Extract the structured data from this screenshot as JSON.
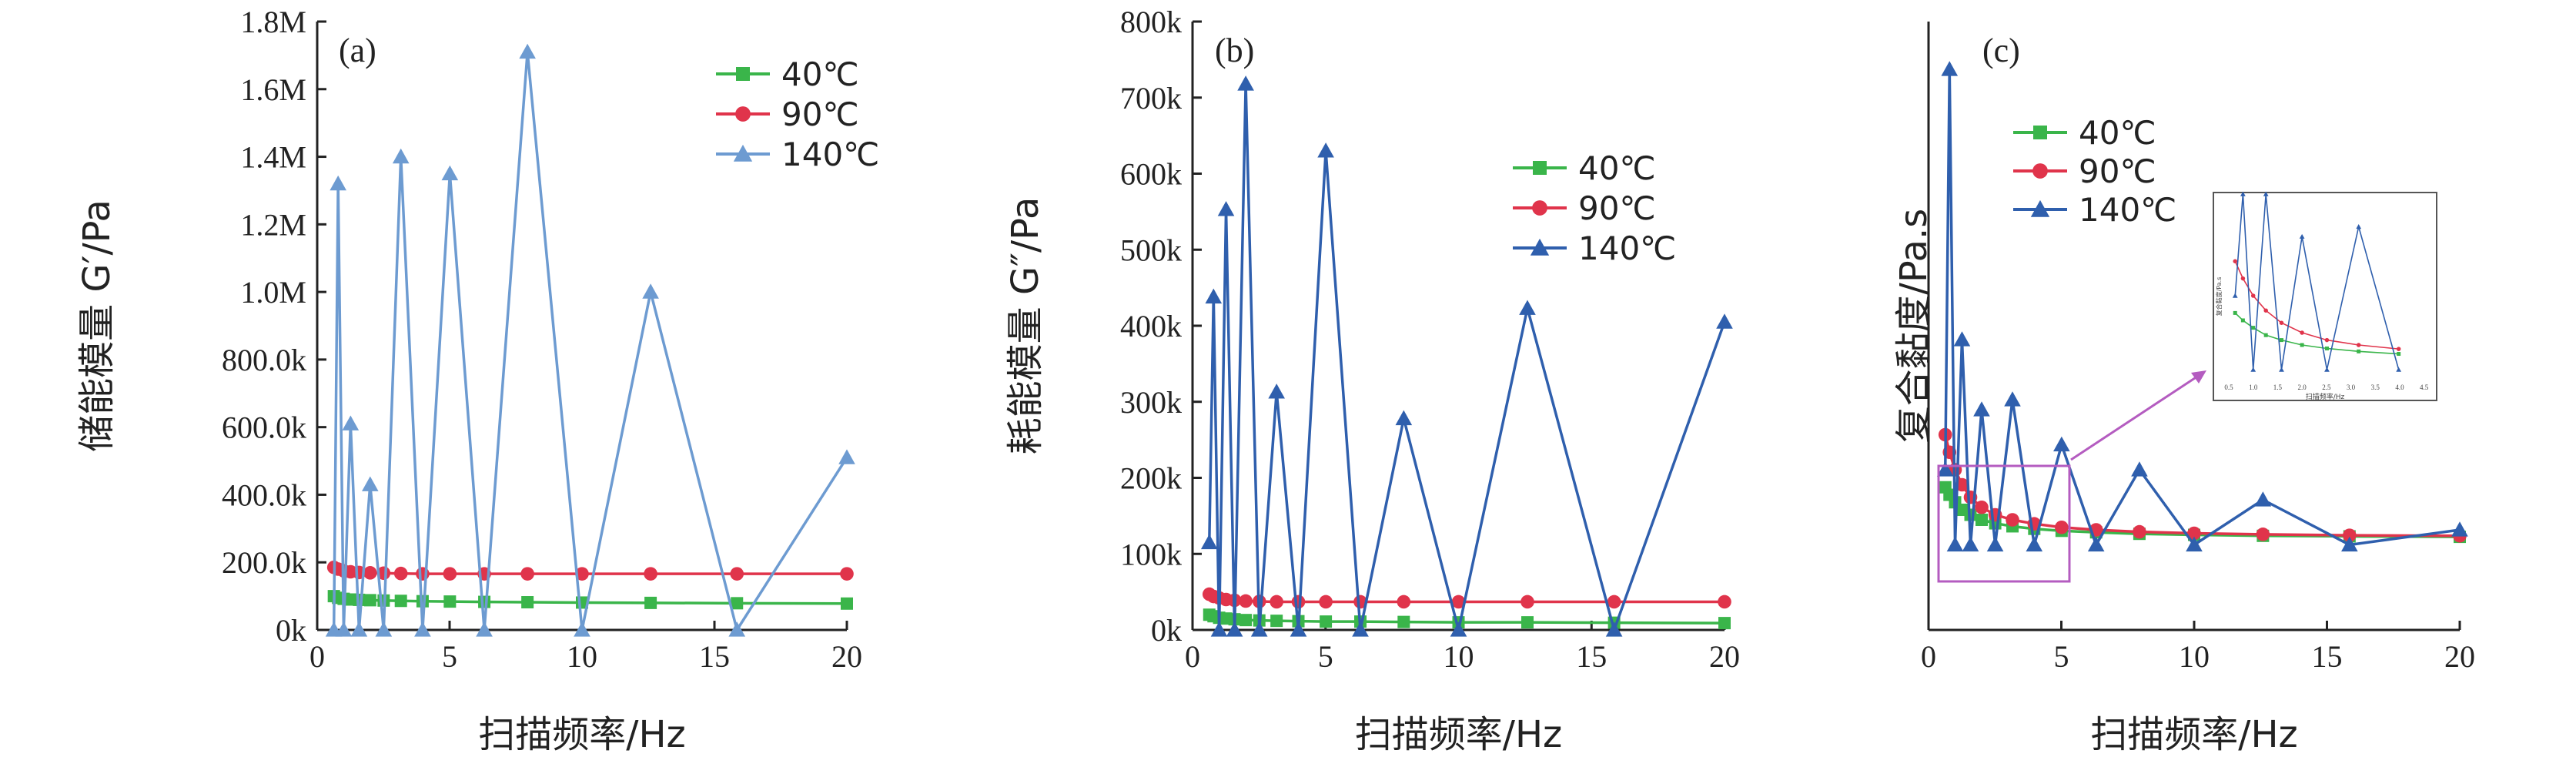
{
  "colors": {
    "c40": "#3ab54a",
    "c90": "#e0344b",
    "c140a": "#6d9bd1",
    "c140bc": "#2f5fad",
    "inset": "#b45cc0",
    "axis": "#222222"
  },
  "chart_data": [
    {
      "type": "line",
      "panel": "(a)",
      "xlabel": "扫描频率/Hz",
      "ylabel": "储能模量 G′/Pa",
      "xlim": [
        0,
        20
      ],
      "ylim": [
        0,
        1800000
      ],
      "xticks": [
        "0",
        "5",
        "10",
        "15",
        "20"
      ],
      "xtick_values": [
        0,
        5,
        10,
        15,
        20
      ],
      "yticks": [
        "0k",
        "200.0k",
        "400.0k",
        "600.0k",
        "800.0k",
        "1.0M",
        "1.2M",
        "1.4M",
        "1.6M",
        "1.8M"
      ],
      "ytick_values": [
        0,
        200000,
        400000,
        600000,
        800000,
        1000000,
        1200000,
        1400000,
        1600000,
        1800000
      ],
      "legend_position": "top-right",
      "series": [
        {
          "name": "40℃",
          "color_key": "c40",
          "marker": "square",
          "x": [
            0.63,
            0.79,
            1.0,
            1.26,
            1.58,
            2.0,
            2.51,
            3.16,
            3.98,
            5.01,
            6.31,
            7.94,
            10.0,
            12.59,
            15.85,
            20.0
          ],
          "y": [
            100000,
            95000,
            92000,
            90000,
            89000,
            88000,
            87000,
            86000,
            85000,
            84000,
            83000,
            82000,
            81000,
            80000,
            79000,
            78000
          ]
        },
        {
          "name": "90℃",
          "color_key": "c90",
          "marker": "circle",
          "x": [
            0.63,
            0.79,
            1.0,
            1.26,
            1.58,
            2.0,
            2.51,
            3.16,
            3.98,
            5.01,
            6.31,
            7.94,
            10.0,
            12.59,
            15.85,
            20.0
          ],
          "y": [
            185000,
            180000,
            175000,
            172000,
            170000,
            169000,
            168000,
            167000,
            166000,
            166000,
            166000,
            166000,
            166000,
            166000,
            166000,
            166000
          ]
        },
        {
          "name": "140℃",
          "color_key": "c140a",
          "marker": "triangle",
          "x": [
            0.63,
            0.79,
            1.0,
            1.26,
            1.58,
            2.0,
            2.51,
            3.16,
            3.98,
            5.01,
            6.31,
            7.94,
            10.0,
            12.59,
            15.85,
            20.0
          ],
          "y": [
            0,
            1320000,
            0,
            610000,
            0,
            430000,
            0,
            1400000,
            0,
            1350000,
            0,
            1710000,
            0,
            1000000,
            0,
            510000
          ]
        }
      ]
    },
    {
      "type": "line",
      "panel": "(b)",
      "xlabel": "扫描频率/Hz",
      "ylabel": "耗能模量 G″/Pa",
      "xlim": [
        0,
        20
      ],
      "ylim": [
        0,
        800000
      ],
      "xticks": [
        "0",
        "5",
        "10",
        "15",
        "20"
      ],
      "xtick_values": [
        0,
        5,
        10,
        15,
        20
      ],
      "yticks": [
        "0k",
        "100k",
        "200k",
        "300k",
        "400k",
        "500k",
        "600k",
        "700k",
        "800k"
      ],
      "ytick_values": [
        0,
        100000,
        200000,
        300000,
        400000,
        500000,
        600000,
        700000,
        800000
      ],
      "legend_position": "top-right",
      "series": [
        {
          "name": "40℃",
          "color_key": "c40",
          "marker": "square",
          "x": [
            0.63,
            0.79,
            1.0,
            1.26,
            1.58,
            2.0,
            2.51,
            3.16,
            3.98,
            5.01,
            6.31,
            7.94,
            10.0,
            12.59,
            15.85,
            20.0
          ],
          "y": [
            20000,
            18000,
            16000,
            15000,
            14000,
            13000,
            12500,
            12000,
            11500,
            11000,
            11000,
            10500,
            10000,
            10000,
            9500,
            9000
          ]
        },
        {
          "name": "90℃",
          "color_key": "c90",
          "marker": "circle",
          "x": [
            0.63,
            0.79,
            1.0,
            1.26,
            1.58,
            2.0,
            2.51,
            3.16,
            3.98,
            5.01,
            6.31,
            7.94,
            10.0,
            12.59,
            15.85,
            20.0
          ],
          "y": [
            47000,
            44000,
            42000,
            40000,
            39000,
            38000,
            37500,
            37000,
            37000,
            37000,
            37000,
            37000,
            37000,
            37000,
            37000,
            37000
          ]
        },
        {
          "name": "140℃",
          "color_key": "c140bc",
          "marker": "triangle",
          "x": [
            0.63,
            0.79,
            1.0,
            1.26,
            1.58,
            2.0,
            2.51,
            3.16,
            3.98,
            5.01,
            6.31,
            7.94,
            10.0,
            12.59,
            15.85,
            20.0
          ],
          "y": [
            115000,
            438000,
            0,
            553000,
            0,
            718000,
            0,
            313000,
            0,
            630000,
            0,
            278000,
            0,
            423000,
            0,
            405000
          ]
        }
      ]
    },
    {
      "type": "line",
      "panel": "(c)",
      "xlabel": "扫描频率/Hz",
      "ylabel": "复合黏度/Pa.s",
      "xlim": [
        0,
        20
      ],
      "xticks": [
        "0",
        "5",
        "10",
        "15",
        "20"
      ],
      "xtick_values": [
        0,
        5,
        10,
        15,
        20
      ],
      "yticks": [],
      "legend_position": "top-left",
      "series": [
        {
          "name": "40℃",
          "color_key": "c40",
          "marker": "square",
          "x": [
            0.63,
            0.79,
            1.0,
            1.26,
            1.58,
            2.0,
            2.51,
            3.16,
            3.98,
            5.01,
            6.31,
            7.94,
            10.0,
            12.59,
            15.85,
            20.0
          ],
          "y": [
            0.165,
            0.15,
            0.135,
            0.12,
            0.11,
            0.1,
            0.093,
            0.087,
            0.082,
            0.078,
            0.075,
            0.072,
            0.07,
            0.068,
            0.067,
            0.066
          ]
        },
        {
          "name": "90℃",
          "color_key": "c90",
          "marker": "circle",
          "x": [
            0.63,
            0.79,
            1.0,
            1.26,
            1.58,
            2.0,
            2.51,
            3.16,
            3.98,
            5.01,
            6.31,
            7.94,
            10.0,
            12.59,
            15.85,
            20.0
          ],
          "y": [
            0.27,
            0.235,
            0.2,
            0.17,
            0.145,
            0.125,
            0.11,
            0.1,
            0.092,
            0.085,
            0.08,
            0.076,
            0.073,
            0.071,
            0.069,
            0.068
          ]
        },
        {
          "name": "140℃",
          "color_key": "c140bc",
          "marker": "triangle",
          "x": [
            0.63,
            0.79,
            1.0,
            1.26,
            1.58,
            2.0,
            2.51,
            3.16,
            3.98,
            5.01,
            6.31,
            7.94,
            10.0,
            12.59,
            15.85,
            20.0
          ],
          "y": [
            0.2,
            1.0,
            0.05,
            0.46,
            0.05,
            0.32,
            0.05,
            0.34,
            0.05,
            0.25,
            0.05,
            0.2,
            0.05,
            0.14,
            0.05,
            0.08
          ]
        }
      ],
      "inset": {
        "xticks": [
          "0.5",
          "1.0",
          "1.5",
          "2.0",
          "2.5",
          "3.0",
          "3.5",
          "4.0",
          "4.5"
        ],
        "xlabel": "扫描频率/Hz",
        "ylabel": "复合黏度/Pa.s"
      }
    }
  ]
}
